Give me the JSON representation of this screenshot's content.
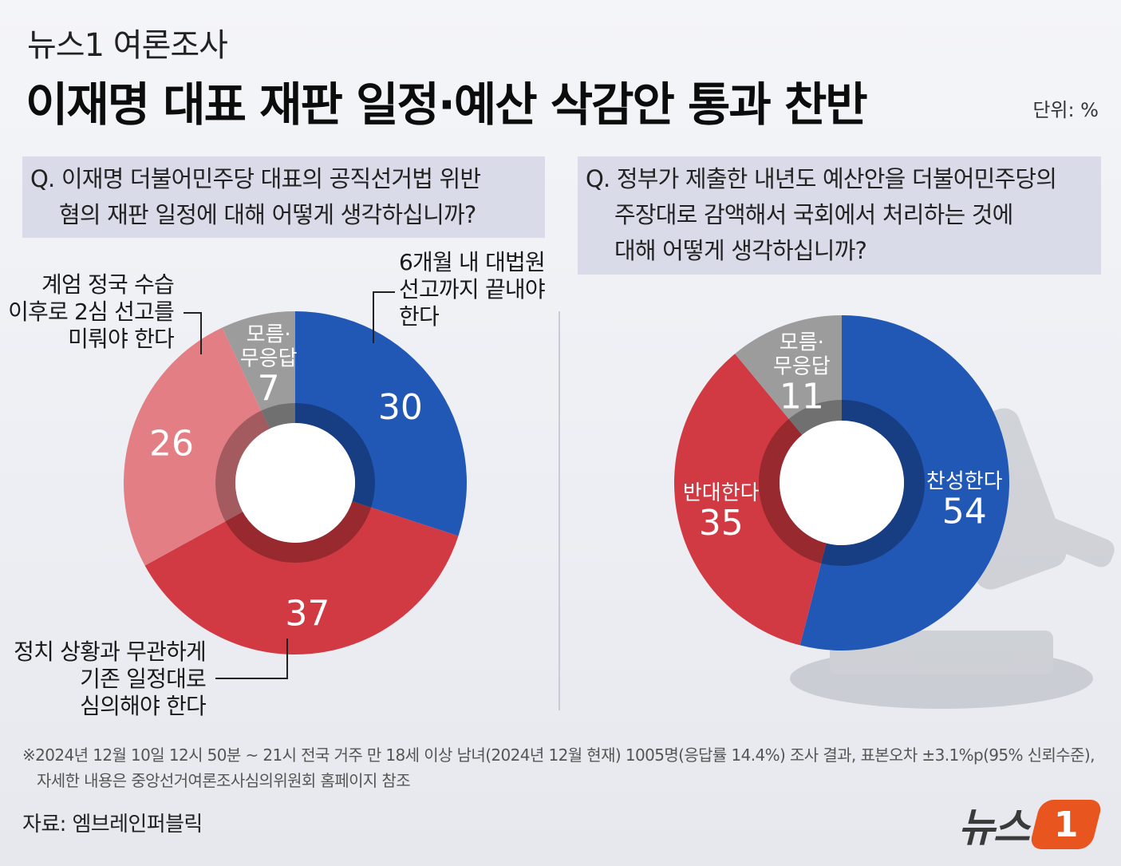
{
  "header": {
    "kicker": "뉴스1 여론조사",
    "title": "이재명 대표 재판 일정·예산 삭감안 통과 찬반",
    "unit": "단위: %"
  },
  "left": {
    "question_lines": [
      "Q. 이재명 더불어민주당 대표의 공직선거법 위반",
      "혐의 재판 일정에 대해 어떻게 생각하십니까?"
    ],
    "callouts": {
      "a": [
        "6개월 내 대법원",
        "선고까지 끝내야",
        "한다"
      ],
      "b": [
        "계엄 정국 수습",
        "이후로 2심 선고를",
        "미뤄야 한다"
      ],
      "c": [
        "정치 상황과 무관하게",
        "기존 일정대로",
        "심의해야 한다"
      ]
    }
  },
  "right": {
    "question_lines": [
      "Q. 정부가 제출한 내년도 예산안을 더불어민주당의",
      "주장대로 감액해서 국회에서 처리하는 것에",
      "대해 어떻게 생각하십니까?"
    ]
  },
  "chart_data": [
    {
      "type": "pie",
      "donut": true,
      "categories": [
        "6개월 내 대법원 선고까지 끝내야 한다",
        "정치 상황과 무관하게 기존 일정대로 심의해야 한다",
        "계엄 정국 수습 이후로 2심 선고를 미뤄야 한다",
        "모름·무응답"
      ],
      "values": [
        30,
        37,
        26,
        7
      ],
      "colors": [
        "#2157b5",
        "#d13a42",
        "#e37e84",
        "#9c9c9c"
      ],
      "inner_labels": [
        "",
        "",
        "",
        "모름·무응답"
      ]
    },
    {
      "type": "pie",
      "donut": true,
      "categories": [
        "찬성한다",
        "반대한다",
        "모름·무응답"
      ],
      "values": [
        54,
        35,
        11
      ],
      "colors": [
        "#2157b5",
        "#d13a42",
        "#9c9c9c"
      ],
      "inner_labels": [
        "찬성한다",
        "반대한다",
        "모름·무응답"
      ]
    }
  ],
  "footer": {
    "note_lines": [
      "※2024년 12월 10일 12시 50분 ~ 21시 전국 거주 만 18세 이상 남녀(2024년 12월 현재) 1005명(응답률 14.4%) 조사 결과, 표본오차 ±3.1%p(95% 신뢰수준),",
      "자세한 내용은 중앙선거여론조사심의위원회 홈페이지 참조"
    ],
    "source": "자료: 엠브레인퍼블릭",
    "logo_text": "뉴스",
    "logo_mark": "1"
  }
}
